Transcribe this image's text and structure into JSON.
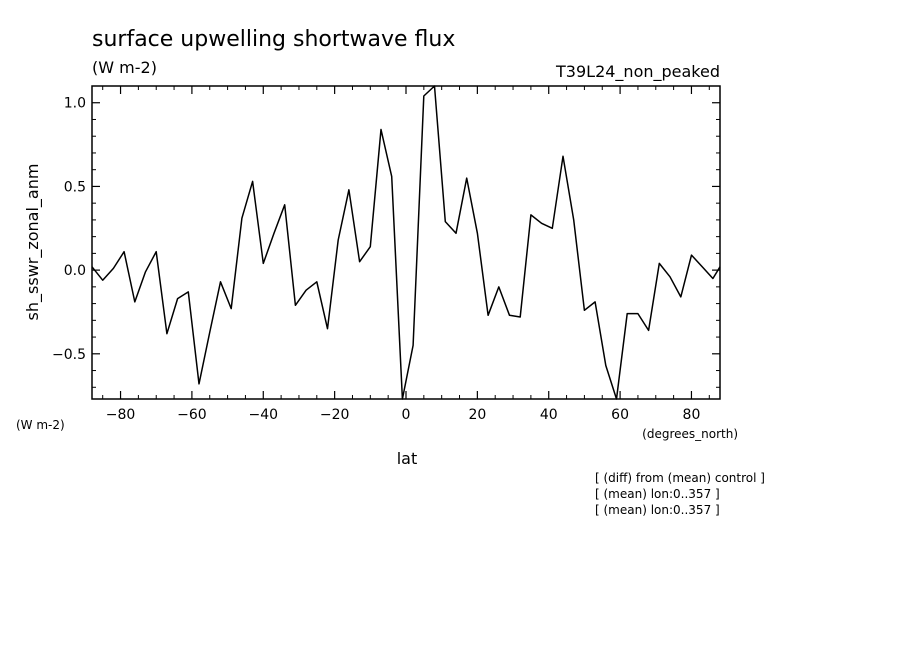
{
  "chart_data": {
    "type": "line",
    "title": "surface upwelling shortwave flux",
    "units": "(W m-2)",
    "run_label": "T39L24_non_peaked",
    "ylabel": "sh_sswr_zonal_anm",
    "y_units": "(W m-2)",
    "xlabel": "lat",
    "x_units": "(degrees_north)",
    "xlim": [
      -88,
      88
    ],
    "ylim": [
      -0.77,
      1.1
    ],
    "x_ticks": [
      -80,
      -60,
      -40,
      -20,
      0,
      20,
      40,
      60,
      80
    ],
    "x_tick_labels": [
      "−80",
      "−60",
      "−40",
      "−20",
      "0",
      "20",
      "40",
      "60",
      "80"
    ],
    "y_ticks": [
      1.0,
      0.5,
      0.0,
      -0.5
    ],
    "y_tick_labels": [
      "1.0",
      "0.5",
      "0.0",
      "−0.5"
    ],
    "notes": [
      "[ (diff) from (mean) control ]",
      "[ (mean) lon:0..357 ]",
      "[ (mean) lon:0..357 ]"
    ],
    "series": [
      {
        "x": [
          -88,
          -85,
          -82,
          -79,
          -76,
          -73,
          -70,
          -67,
          -64,
          -61,
          -58,
          -55,
          -52,
          -49,
          -46,
          -43,
          -40,
          -37,
          -34,
          -31,
          -28,
          -25,
          -22,
          -19,
          -16,
          -13,
          -10,
          -7,
          -4,
          -1,
          2,
          5,
          8,
          11,
          14,
          17,
          20,
          23,
          26,
          29,
          32,
          35,
          38,
          41,
          44,
          47,
          50,
          53,
          56,
          59,
          62,
          65,
          68,
          71,
          74,
          77,
          80,
          83,
          86,
          88
        ],
        "y": [
          0.02,
          -0.06,
          0.01,
          0.11,
          -0.19,
          -0.01,
          0.11,
          -0.38,
          -0.17,
          -0.13,
          -0.68,
          -0.37,
          -0.07,
          -0.23,
          0.31,
          0.53,
          0.04,
          0.22,
          0.39,
          -0.21,
          -0.12,
          -0.07,
          -0.35,
          0.18,
          0.48,
          0.05,
          0.14,
          0.84,
          0.56,
          -0.77,
          -0.45,
          1.04,
          1.1,
          0.29,
          0.22,
          0.55,
          0.22,
          -0.27,
          -0.1,
          -0.27,
          -0.28,
          0.33,
          0.28,
          0.25,
          0.68,
          0.3,
          -0.24,
          -0.19,
          -0.57,
          -0.77,
          -0.26,
          -0.26,
          -0.36,
          0.04,
          -0.04,
          -0.16,
          0.09,
          0.02,
          -0.05,
          0.02
        ]
      }
    ]
  }
}
